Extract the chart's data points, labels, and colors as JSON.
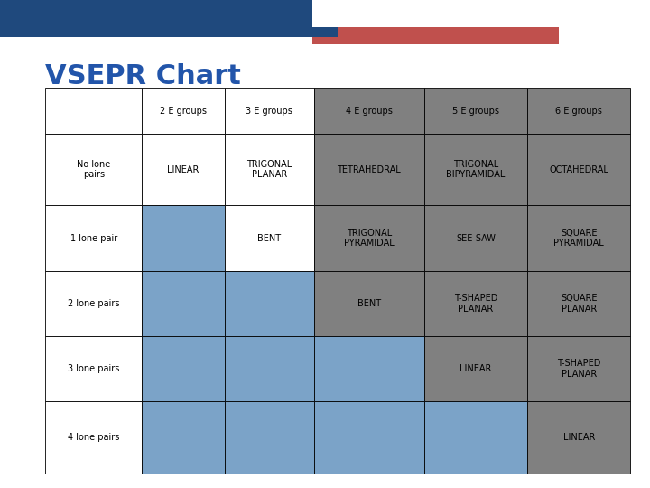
{
  "title": "VSEPR Chart",
  "title_color": "#2255AA",
  "title_fontsize": 22,
  "header_bar_color1": "#1F497D",
  "header_bar_color2": "#C0504D",
  "col_headers": [
    "",
    "2 E groups",
    "3 E groups",
    "4 E groups",
    "5 E groups",
    "6 E groups"
  ],
  "row_headers": [
    "No lone\npairs",
    "1 lone pair",
    "2 lone pairs",
    "3 lone pairs",
    "4 lone pairs"
  ],
  "cell_data": [
    [
      "LINEAR",
      "TRIGONAL\nPLANAR",
      "TETRAHEDRAL",
      "TRIGONAL\nBIPYRAMIDAL",
      "OCTAHEDRAL"
    ],
    [
      "",
      "BENT",
      "TRIGONAL\nPYRAMIDAL",
      "SEE-SAW",
      "SQUARE\nPYRAMIDAL"
    ],
    [
      "",
      "",
      "BENT",
      "T-SHAPED\nPLANAR",
      "SQUARE\nPLANAR"
    ],
    [
      "",
      "",
      "",
      "LINEAR",
      "T-SHAPED\nPLANAR"
    ],
    [
      "",
      "",
      "",
      "",
      "LINEAR"
    ]
  ],
  "cell_colors": [
    [
      "white",
      "white",
      "white",
      "gray",
      "gray",
      "gray"
    ],
    [
      "white",
      "white",
      "white",
      "gray",
      "gray",
      "gray"
    ],
    [
      "white",
      "blue",
      "white",
      "gray",
      "gray",
      "gray"
    ],
    [
      "white",
      "blue",
      "blue",
      "gray",
      "gray",
      "gray"
    ],
    [
      "white",
      "blue",
      "blue",
      "blue",
      "gray",
      "gray"
    ],
    [
      "white",
      "blue",
      "blue",
      "blue",
      "blue",
      "gray"
    ]
  ],
  "blue_color": "#7BA3C8",
  "gray_color": "#808080",
  "white_color": "#FFFFFF",
  "border_color": "#000000",
  "text_color": "#000000",
  "cell_fontsize": 7,
  "header_fontsize": 7,
  "fig_width": 7.2,
  "fig_height": 5.4,
  "dpi": 100
}
